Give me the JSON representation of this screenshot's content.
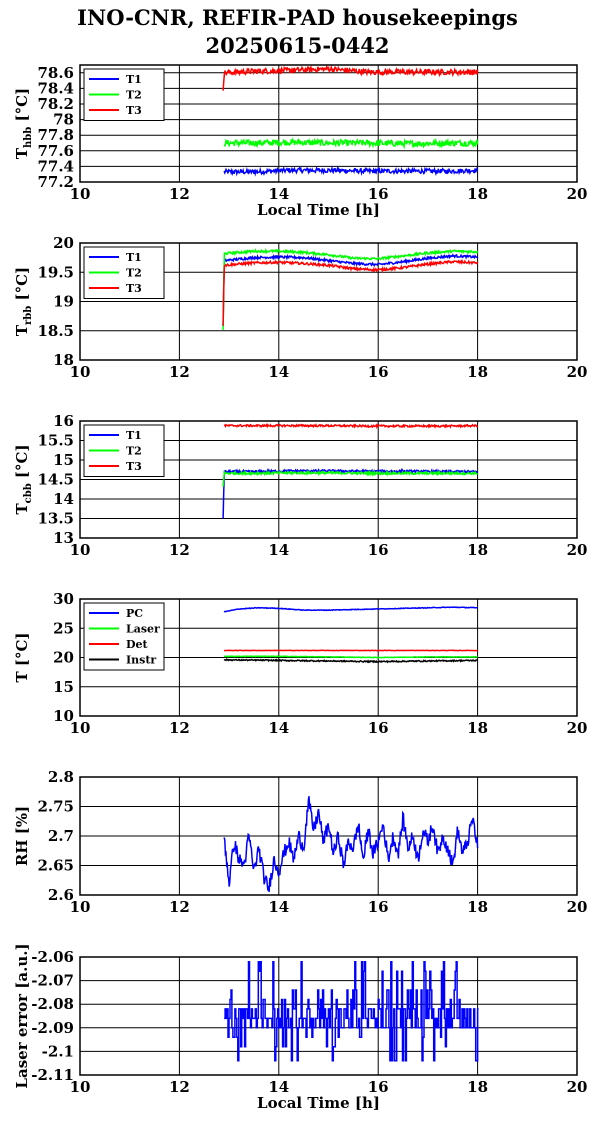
{
  "title": {
    "line1": "INO-CNR, REFIR-PAD housekeepings",
    "line2": "20250615-0442"
  },
  "chart_data": [
    {
      "type": "line",
      "ylabel": "T",
      "ylabel_sub": "hbb",
      "ylabel_unit": "[°C]",
      "xlabel": "Local Time [h]",
      "xlim": [
        10,
        20
      ],
      "ylim": [
        77.2,
        78.7
      ],
      "xticks": [
        "10",
        "12",
        "14",
        "16",
        "18",
        "20"
      ],
      "yticks": [
        "77.2",
        "77.4",
        "77.6",
        "77.8",
        "78",
        "78.2",
        "78.4",
        "78.6"
      ],
      "ytick_values": [
        77.2,
        77.4,
        77.6,
        77.8,
        78.0,
        78.2,
        78.4,
        78.6
      ],
      "grid": true,
      "legend_position": "top-left",
      "series": [
        {
          "name": "T1",
          "color": "#0000ff",
          "x": [
            12.9,
            13.5,
            14.2,
            15.0,
            15.8,
            16.6,
            17.4,
            18.0
          ],
          "y": [
            77.33,
            77.33,
            77.35,
            77.35,
            77.34,
            77.34,
            77.34,
            77.35
          ],
          "noise": 0.03
        },
        {
          "name": "T2",
          "color": "#00ff00",
          "x": [
            12.9,
            13.5,
            14.2,
            15.0,
            15.8,
            16.6,
            17.4,
            18.0
          ],
          "y": [
            77.7,
            77.7,
            77.71,
            77.7,
            77.7,
            77.69,
            77.7,
            77.7
          ],
          "noise": 0.04
        },
        {
          "name": "T3",
          "color": "#ff0000",
          "x": [
            12.88,
            12.9,
            13.5,
            14.2,
            15.0,
            15.8,
            16.6,
            17.4,
            18.0
          ],
          "y": [
            78.4,
            78.6,
            78.62,
            78.63,
            78.65,
            78.61,
            78.61,
            78.61,
            78.61
          ],
          "noise": 0.035
        }
      ]
    },
    {
      "type": "line",
      "ylabel": "T",
      "ylabel_sub": "rbb",
      "ylabel_unit": "[°C]",
      "xlabel": "",
      "xlim": [
        10,
        20
      ],
      "ylim": [
        18,
        20
      ],
      "xticks": [
        "10",
        "12",
        "14",
        "16",
        "18",
        "20"
      ],
      "yticks": [
        "18",
        "18.5",
        "19",
        "19.5",
        "20"
      ],
      "ytick_values": [
        18,
        18.5,
        19,
        19.5,
        20
      ],
      "grid": true,
      "legend_position": "top-left",
      "series": [
        {
          "name": "T1",
          "color": "#0000ff",
          "x": [
            12.88,
            12.9,
            13.5,
            14.0,
            14.5,
            15.0,
            15.5,
            16.0,
            16.5,
            17.0,
            17.5,
            18.0
          ],
          "y": [
            18.6,
            19.7,
            19.75,
            19.76,
            19.75,
            19.7,
            19.65,
            19.63,
            19.68,
            19.74,
            19.78,
            19.76
          ],
          "noise": 0.02
        },
        {
          "name": "T2",
          "color": "#00ff00",
          "x": [
            12.88,
            12.9,
            13.5,
            14.0,
            14.5,
            15.0,
            15.5,
            16.0,
            16.5,
            17.0,
            17.5,
            18.0
          ],
          "y": [
            18.5,
            19.82,
            19.86,
            19.86,
            19.84,
            19.8,
            19.74,
            19.73,
            19.78,
            19.83,
            19.86,
            19.85
          ],
          "noise": 0.02
        },
        {
          "name": "T3",
          "color": "#ff0000",
          "x": [
            12.88,
            12.9,
            13.5,
            14.0,
            14.5,
            15.0,
            15.5,
            16.0,
            16.5,
            17.0,
            17.5,
            18.0
          ],
          "y": [
            18.6,
            19.62,
            19.66,
            19.67,
            19.65,
            19.62,
            19.56,
            19.54,
            19.58,
            19.64,
            19.68,
            19.66
          ],
          "noise": 0.02
        }
      ]
    },
    {
      "type": "line",
      "ylabel": "T",
      "ylabel_sub": "cbb",
      "ylabel_unit": "[°C]",
      "xlabel": "",
      "xlim": [
        10,
        20
      ],
      "ylim": [
        13,
        16
      ],
      "xticks": [
        "10",
        "12",
        "14",
        "16",
        "18",
        "20"
      ],
      "yticks": [
        "13",
        "13.5",
        "14",
        "14.5",
        "15",
        "15.5",
        "16"
      ],
      "ytick_values": [
        13,
        13.5,
        14,
        14.5,
        15,
        15.5,
        16
      ],
      "grid": true,
      "legend_position": "top-left",
      "series": [
        {
          "name": "T1",
          "color": "#0000ff",
          "x": [
            12.88,
            12.9,
            13.5,
            14.2,
            15.0,
            15.8,
            16.6,
            17.4,
            18.0
          ],
          "y": [
            13.5,
            14.7,
            14.7,
            14.72,
            14.72,
            14.71,
            14.71,
            14.7,
            14.7
          ],
          "noise": 0.03
        },
        {
          "name": "T2",
          "color": "#00ff00",
          "x": [
            12.88,
            12.9,
            13.5,
            14.2,
            15.0,
            15.8,
            16.6,
            17.4,
            18.0
          ],
          "y": [
            14.3,
            14.66,
            14.66,
            14.67,
            14.67,
            14.66,
            14.66,
            14.66,
            14.66
          ],
          "noise": 0.03
        },
        {
          "name": "T3",
          "color": "#ff0000",
          "x": [
            12.9,
            13.5,
            14.2,
            15.0,
            15.8,
            16.6,
            17.4,
            18.0
          ],
          "y": [
            15.88,
            15.88,
            15.88,
            15.88,
            15.87,
            15.87,
            15.87,
            15.88
          ],
          "noise": 0.025
        }
      ]
    },
    {
      "type": "line",
      "ylabel": "T [°C]",
      "xlabel": "",
      "xlim": [
        10,
        20
      ],
      "ylim": [
        10,
        30
      ],
      "xticks": [
        "10",
        "12",
        "14",
        "16",
        "18",
        "20"
      ],
      "yticks": [
        "10",
        "15",
        "20",
        "25",
        "30"
      ],
      "ytick_values": [
        10,
        15,
        20,
        25,
        30
      ],
      "grid": true,
      "legend_position": "top-left",
      "series": [
        {
          "name": "PC",
          "color": "#0000ff",
          "x": [
            12.9,
            13.2,
            13.6,
            14.0,
            14.5,
            15.0,
            15.5,
            16.0,
            16.5,
            17.0,
            17.5,
            18.0
          ],
          "y": [
            27.8,
            28.3,
            28.5,
            28.4,
            28.1,
            28.1,
            28.2,
            28.3,
            28.4,
            28.5,
            28.6,
            28.5
          ],
          "noise": 0.05
        },
        {
          "name": "Laser",
          "color": "#00ff00",
          "x": [
            12.9,
            14.0,
            15.0,
            16.0,
            17.0,
            18.0
          ],
          "y": [
            20.2,
            20.2,
            20.1,
            20.0,
            20.1,
            20.1
          ],
          "noise": 0.04
        },
        {
          "name": "Det",
          "color": "#ff0000",
          "x": [
            12.9,
            14.0,
            15.0,
            16.0,
            17.0,
            18.0
          ],
          "y": [
            21.2,
            21.2,
            21.2,
            21.2,
            21.2,
            21.2
          ],
          "noise": 0.03
        },
        {
          "name": "Instr",
          "color": "#000000",
          "x": [
            12.9,
            14.0,
            15.0,
            16.0,
            17.0,
            18.0
          ],
          "y": [
            19.6,
            19.5,
            19.4,
            19.3,
            19.4,
            19.5
          ],
          "noise": 0.1
        }
      ]
    },
    {
      "type": "line",
      "ylabel": "RH [%]",
      "xlabel": "",
      "xlim": [
        10,
        20
      ],
      "ylim": [
        2.6,
        2.8
      ],
      "xticks": [
        "10",
        "12",
        "14",
        "16",
        "18",
        "20"
      ],
      "yticks": [
        "2.6",
        "2.65",
        "2.7",
        "2.75",
        "2.8"
      ],
      "ytick_values": [
        2.6,
        2.65,
        2.7,
        2.75,
        2.8
      ],
      "grid": true,
      "legend_position": "none",
      "series": [
        {
          "name": "",
          "color": "#0000ff",
          "x": [
            12.9,
            13.0,
            13.1,
            13.2,
            13.3,
            13.4,
            13.5,
            13.6,
            13.7,
            13.8,
            13.9,
            14.0,
            14.1,
            14.2,
            14.3,
            14.4,
            14.5,
            14.6,
            14.7,
            14.8,
            14.9,
            15.0,
            15.1,
            15.2,
            15.3,
            15.4,
            15.5,
            15.6,
            15.7,
            15.8,
            15.9,
            16.0,
            16.1,
            16.2,
            16.3,
            16.4,
            16.5,
            16.6,
            16.7,
            16.8,
            16.9,
            17.0,
            17.1,
            17.2,
            17.3,
            17.4,
            17.5,
            17.6,
            17.7,
            17.8,
            17.9,
            18.0
          ],
          "y": [
            2.7,
            2.62,
            2.69,
            2.66,
            2.65,
            2.7,
            2.64,
            2.68,
            2.63,
            2.61,
            2.66,
            2.64,
            2.67,
            2.69,
            2.66,
            2.7,
            2.68,
            2.76,
            2.71,
            2.74,
            2.69,
            2.72,
            2.67,
            2.7,
            2.65,
            2.69,
            2.68,
            2.72,
            2.66,
            2.71,
            2.67,
            2.69,
            2.72,
            2.66,
            2.7,
            2.67,
            2.73,
            2.68,
            2.7,
            2.66,
            2.71,
            2.69,
            2.72,
            2.67,
            2.7,
            2.68,
            2.65,
            2.71,
            2.67,
            2.69,
            2.73,
            2.68
          ],
          "noise": 0.012
        }
      ]
    },
    {
      "type": "line",
      "ylabel": "Laser error [a.u.]",
      "xlabel": "Local Time [h]",
      "xlim": [
        10,
        20
      ],
      "ylim": [
        -2.11,
        -2.06
      ],
      "xticks": [
        "10",
        "12",
        "14",
        "16",
        "18",
        "20"
      ],
      "yticks": [
        "-2.11",
        "-2.1",
        "-2.09",
        "-2.08",
        "-2.07",
        "-2.06"
      ],
      "ytick_values": [
        -2.11,
        -2.1,
        -2.09,
        -2.08,
        -2.07,
        -2.06
      ],
      "grid": true,
      "legend_position": "none",
      "series": [
        {
          "name": "",
          "color": "#0000ff",
          "x": [
            12.9,
            18.0
          ],
          "y": [
            -2.062,
            -2.104
          ],
          "levels": [
            -2.062,
            -2.066,
            -2.074,
            -2.078,
            -2.082,
            -2.086,
            -2.09,
            -2.094,
            -2.098,
            -2.104
          ],
          "stepped": true
        }
      ]
    }
  ]
}
